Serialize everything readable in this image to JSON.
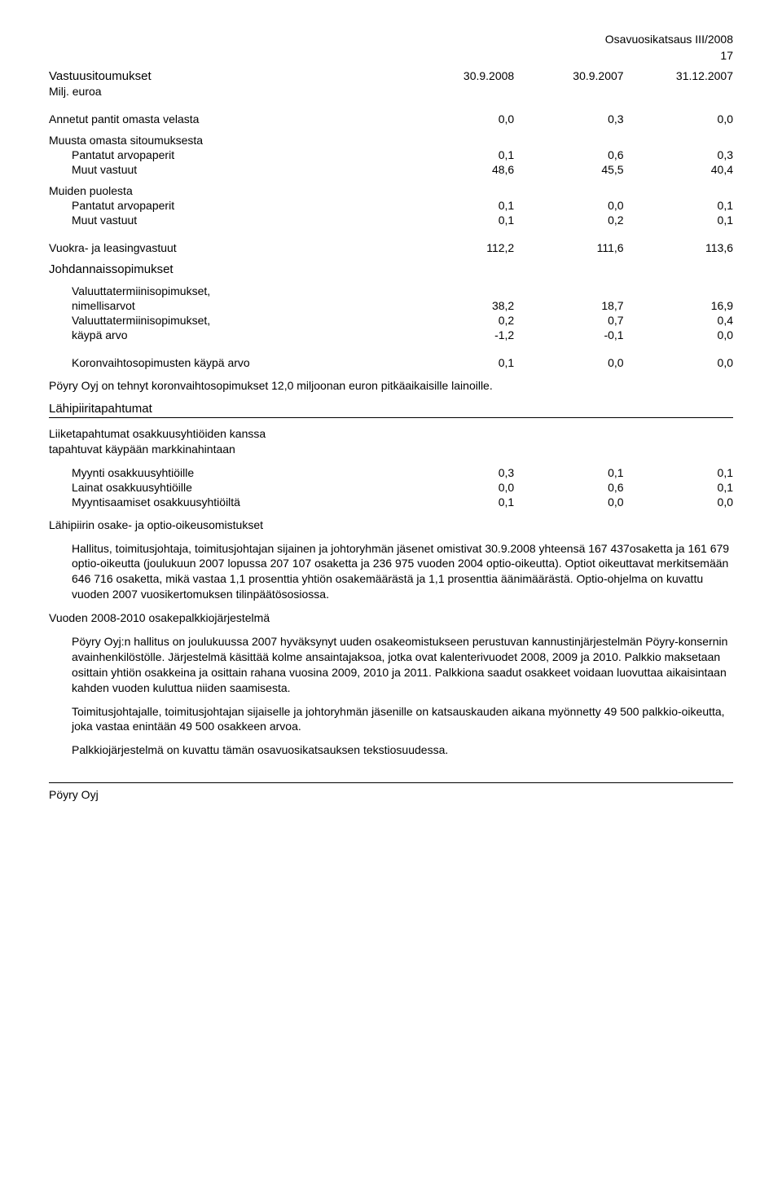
{
  "header": {
    "doc_title": "Osavuosikatsaus III/2008",
    "page_number": "17"
  },
  "col_headers": {
    "title_row_label": "Vastuusitoumukset",
    "subtitle_row_label": "Milj. euroa",
    "c1": "30.9.2008",
    "c2": "30.9.2007",
    "c3": "31.12.2007"
  },
  "rows": {
    "annetut": {
      "label": "Annetut pantit omasta velasta",
      "v1": "0,0",
      "v2": "0,3",
      "v3": "0,0"
    },
    "muusta_title": "Muusta omasta sitoumuksesta",
    "pantatut1": {
      "label": "Pantatut arvopaperit",
      "v1": "0,1",
      "v2": "0,6",
      "v3": "0,3"
    },
    "muut1": {
      "label": "Muut vastuut",
      "v1": "48,6",
      "v2": "45,5",
      "v3": "40,4"
    },
    "muiden_title": "Muiden puolesta",
    "pantatut2": {
      "label": "Pantatut arvopaperit",
      "v1": "0,1",
      "v2": "0,0",
      "v3": "0,1"
    },
    "muut2": {
      "label": "Muut vastuut",
      "v1": "0,1",
      "v2": "0,2",
      "v3": "0,1"
    },
    "vuokra": {
      "label": "Vuokra- ja leasingvastuut",
      "v1": "112,2",
      "v2": "111,6",
      "v3": "113,6"
    },
    "johdannais_title": "Johdannaissopimukset",
    "valterm_nim_l1": "Valuuttatermiinisopimukset,",
    "valterm_nim": {
      "label": "nimellisarvot",
      "v1": "38,2",
      "v2": "18,7",
      "v3": "16,9"
    },
    "valterm2": {
      "label": "Valuuttatermiinisopimukset,",
      "v1": "0,2",
      "v2": "0,7",
      "v3": "0,4"
    },
    "kaypa": {
      "label": "käypä arvo",
      "v1": "-1,2",
      "v2": "-0,1",
      "v3": "0,0"
    },
    "koron": {
      "label": "Koronvaihtosopimusten käypä arvo",
      "v1": "0,1",
      "v2": "0,0",
      "v3": "0,0"
    }
  },
  "paras": {
    "poyry_koron": "Pöyry Oyj on tehnyt koronvaihtosopimukset 12,0 miljoonan euron pitkäaikaisille lainoille.",
    "lahipiiri_title": "Lähipiiritapahtumat",
    "liiketap_l1": "Liiketapahtumat osakkuusyhtiöiden kanssa",
    "liiketap_l2": "tapahtuvat käypään markkinahintaan"
  },
  "lahirows": {
    "myynti": {
      "label": "Myynti osakkuusyhtiöille",
      "v1": "0,3",
      "v2": "0,1",
      "v3": "0,1"
    },
    "lainat": {
      "label": "Lainat osakkuusyhtiöille",
      "v1": "0,0",
      "v2": "0,6",
      "v3": "0,1"
    },
    "myyntisaam": {
      "label": "Myyntisaamiset osakkuusyhtiöiltä",
      "v1": "0,1",
      "v2": "0,0",
      "v3": "0,0"
    }
  },
  "texts": {
    "lahipiirin_osake": "Lähipiirin osake- ja optio-oikeusomistukset",
    "hallitus": "Hallitus, toimitusjohtaja, toimitusjohtajan sijainen ja johtoryhmän jäsenet omistivat 30.9.2008 yhteensä 167 437osaketta ja 161 679 optio-oikeutta (joulukuun 2007 lopussa 207 107 osaketta ja 236 975 vuoden 2004 optio-oikeutta). Optiot oikeuttavat merkitsemään 646 716 osaketta, mikä vastaa 1,1 prosenttia yhtiön osakemäärästä ja 1,1 prosenttia äänimäärästä. Optio-ohjelma on kuvattu vuoden 2007 vuosikertomuksen tilinpäätösosiossa.",
    "vuoden_title": "Vuoden 2008-2010 osakepalkkiojärjestelmä",
    "poyry_hallitus": "Pöyry Oyj:n hallitus on joulukuussa 2007 hyväksynyt uuden osakeomistukseen perustuvan kannustinjärjestelmän Pöyry-konsernin avainhenkilöstölle. Järjestelmä käsittää kolme ansaintajaksoa, jotka ovat kalenterivuodet 2008, 2009 ja 2010. Palkkio maksetaan osittain yhtiön osakkeina ja osittain rahana vuosina 2009, 2010 ja 2011. Palkkiona saadut osakkeet voidaan luovuttaa aikaisintaan kahden vuoden kuluttua niiden saamisesta.",
    "toimitusjoht": "Toimitusjohtajalle, toimitusjohtajan sijaiselle ja johtoryhmän jäsenille on katsauskauden aikana myönnetty 49 500 palkkio-oikeutta, joka vastaa enintään 49 500 osakkeen arvoa.",
    "palkkiojarj": "Palkkiojärjestelmä on kuvattu tämän osavuosikatsauksen tekstiosuudessa."
  },
  "footer": {
    "text": "Pöyry Oyj"
  }
}
